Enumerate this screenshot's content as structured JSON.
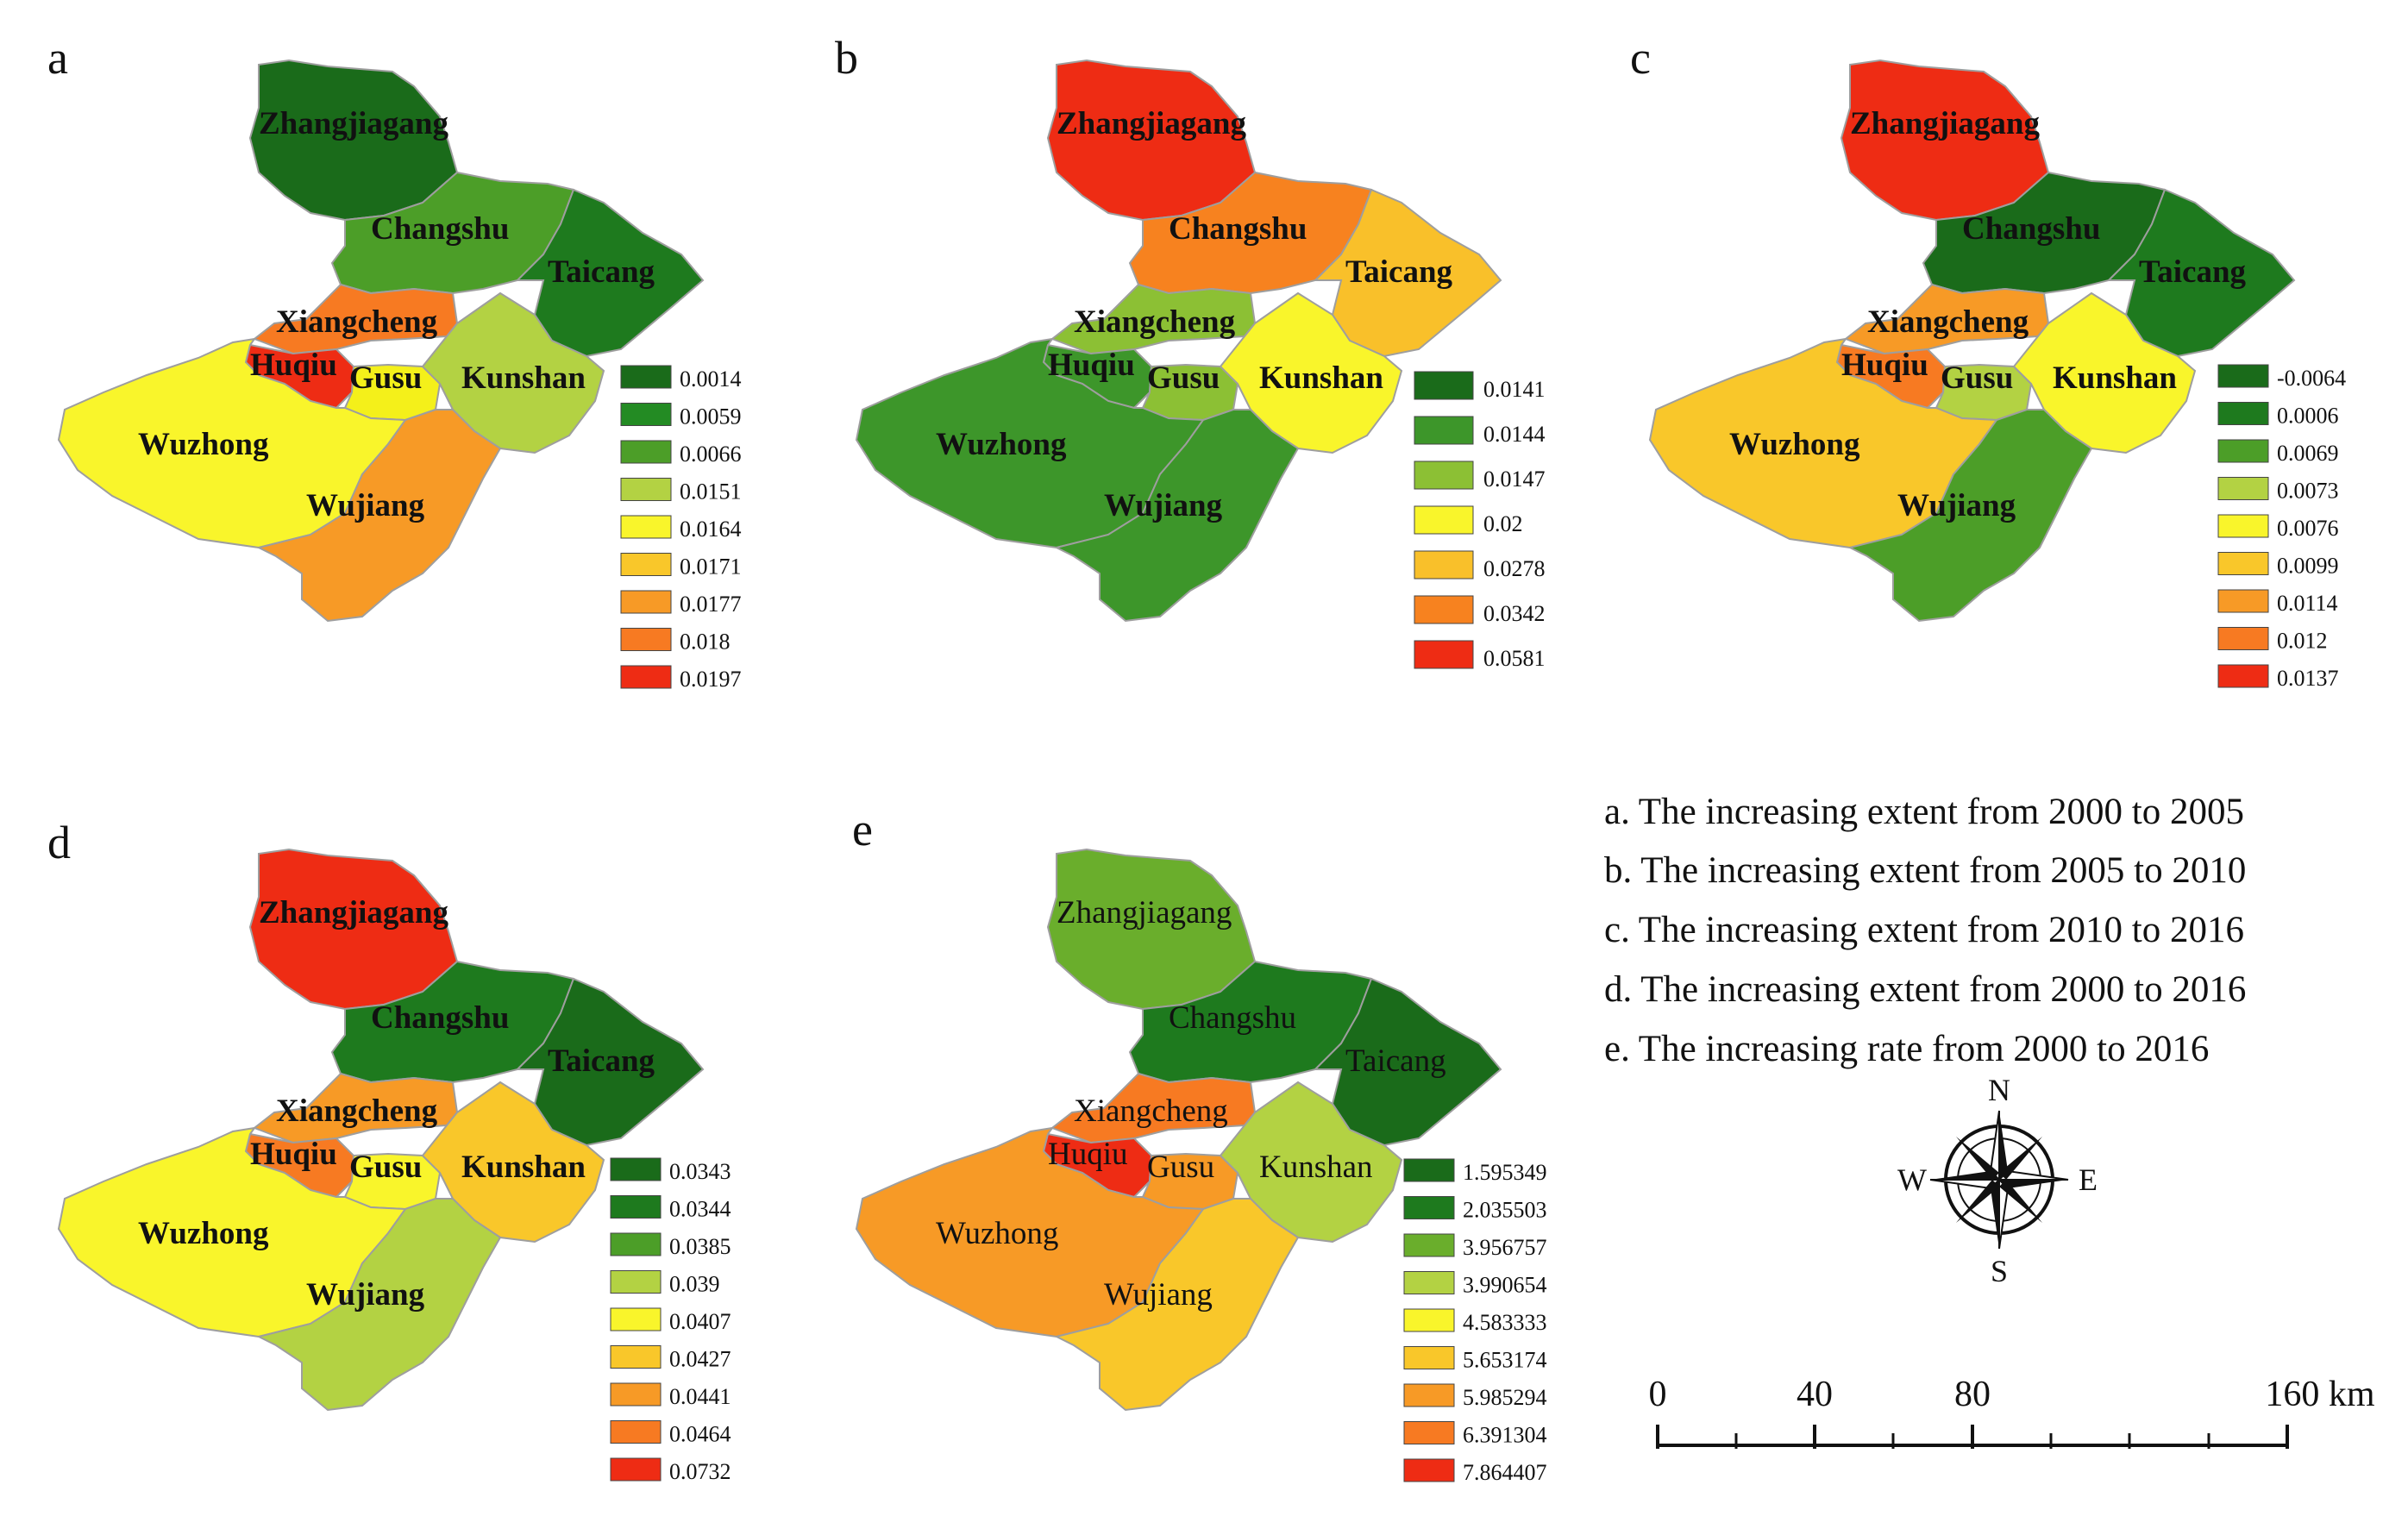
{
  "panels": [
    {
      "label": "a",
      "district_colors": {
        "Zhangjiagang": "#1a6b1a",
        "Changshu": "#4c9e28",
        "Taicang": "#1e7a1e",
        "Xiangcheng": "#f77a22",
        "Huqiu": "#ee2c14",
        "Gusu": "#f4f01a",
        "Kunshan": "#b3d243",
        "Wuzhong": "#f9f52b",
        "Wujiang": "#f79a26"
      },
      "legend": [
        {
          "value": "0.0014",
          "color": "#1a6b1a"
        },
        {
          "value": "0.0059",
          "color": "#238b23"
        },
        {
          "value": "0.0066",
          "color": "#4c9e28"
        },
        {
          "value": "0.0151",
          "color": "#b3d243"
        },
        {
          "value": "0.0164",
          "color": "#f9f52b"
        },
        {
          "value": "0.0171",
          "color": "#f9c72a"
        },
        {
          "value": "0.0177",
          "color": "#f79a26"
        },
        {
          "value": "0.018",
          "color": "#f77a22"
        },
        {
          "value": "0.0197",
          "color": "#ee2c14"
        }
      ]
    },
    {
      "label": "b",
      "district_colors": {
        "Zhangjiagang": "#ee2c14",
        "Changshu": "#f7821f",
        "Taicang": "#f9c02a",
        "Xiangcheng": "#8cc034",
        "Huqiu": "#3d962a",
        "Gusu": "#8cc034",
        "Kunshan": "#f9f52b",
        "Wuzhong": "#3d962a",
        "Wujiang": "#3d962a"
      },
      "legend": [
        {
          "value": "0.0141",
          "color": "#1a6b1a"
        },
        {
          "value": "0.0144",
          "color": "#3d962a"
        },
        {
          "value": "0.0147",
          "color": "#8cc034"
        },
        {
          "value": "0.02",
          "color": "#f9f52b"
        },
        {
          "value": "0.0278",
          "color": "#f9c02a"
        },
        {
          "value": "0.0342",
          "color": "#f7821f"
        },
        {
          "value": "0.0581",
          "color": "#ee2c14"
        }
      ]
    },
    {
      "label": "c",
      "district_colors": {
        "Zhangjiagang": "#ee2c14",
        "Changshu": "#1a6b1a",
        "Taicang": "#1e7a1e",
        "Xiangcheng": "#f79a26",
        "Huqiu": "#f77a22",
        "Gusu": "#b3d243",
        "Kunshan": "#f9f52b",
        "Wuzhong": "#f9c72a",
        "Wujiang": "#4c9e28"
      },
      "legend": [
        {
          "value": "-0.0064",
          "color": "#1a6b1a"
        },
        {
          "value": "0.0006",
          "color": "#1e7a1e"
        },
        {
          "value": "0.0069",
          "color": "#4c9e28"
        },
        {
          "value": "0.0073",
          "color": "#b3d243"
        },
        {
          "value": "0.0076",
          "color": "#f9f52b"
        },
        {
          "value": "0.0099",
          "color": "#f9c72a"
        },
        {
          "value": "0.0114",
          "color": "#f79a26"
        },
        {
          "value": "0.012",
          "color": "#f77a22"
        },
        {
          "value": "0.0137",
          "color": "#ee2c14"
        }
      ]
    },
    {
      "label": "d",
      "district_colors": {
        "Zhangjiagang": "#ee2c14",
        "Changshu": "#1e7a1e",
        "Taicang": "#1a6b1a",
        "Xiangcheng": "#f79a26",
        "Huqiu": "#f77a22",
        "Gusu": "#f9f52b",
        "Kunshan": "#f9c72a",
        "Wuzhong": "#f9f52b",
        "Wujiang": "#b3d243"
      },
      "legend": [
        {
          "value": "0.0343",
          "color": "#1a6b1a"
        },
        {
          "value": "0.0344",
          "color": "#1e7a1e"
        },
        {
          "value": "0.0385",
          "color": "#4c9e28"
        },
        {
          "value": "0.039",
          "color": "#b3d243"
        },
        {
          "value": "0.0407",
          "color": "#f9f52b"
        },
        {
          "value": "0.0427",
          "color": "#f9c72a"
        },
        {
          "value": "0.0441",
          "color": "#f79a26"
        },
        {
          "value": "0.0464",
          "color": "#f77a22"
        },
        {
          "value": "0.0732",
          "color": "#ee2c14"
        }
      ]
    },
    {
      "label": "e",
      "district_colors": {
        "Zhangjiagang": "#6aae2c",
        "Changshu": "#1e7a1e",
        "Taicang": "#1a6b1a",
        "Xiangcheng": "#f77a22",
        "Huqiu": "#ee2c14",
        "Gusu": "#f79a26",
        "Kunshan": "#b3d243",
        "Wuzhong": "#f79a26",
        "Wujiang": "#f9c72a"
      },
      "legend": [
        {
          "value": "1.595349",
          "color": "#1a6b1a"
        },
        {
          "value": "2.035503",
          "color": "#1e7a1e"
        },
        {
          "value": "3.956757",
          "color": "#6aae2c"
        },
        {
          "value": "3.990654",
          "color": "#b3d243"
        },
        {
          "value": "4.583333",
          "color": "#f9f52b"
        },
        {
          "value": "5.653174",
          "color": "#f9c72a"
        },
        {
          "value": "5.985294",
          "color": "#f79a26"
        },
        {
          "value": "6.391304",
          "color": "#f77a22"
        },
        {
          "value": "7.864407",
          "color": "#ee2c14"
        }
      ]
    }
  ],
  "district_names": [
    "Zhangjiagang",
    "Changshu",
    "Taicang",
    "Xiangcheng",
    "Huqiu",
    "Gusu",
    "Kunshan",
    "Wuzhong",
    "Wujiang"
  ],
  "captions": [
    "a. The increasing extent from 2000 to 2005",
    "b. The  increasing extent from 2005 to 2010",
    "c. The  increasing extent from 2010 to 2016",
    "d. The  increasing extent from 2000 to 2016",
    "e. The  increasing rate from 2000 to 2016"
  ],
  "compass": {
    "n": "N",
    "s": "S",
    "e": "E",
    "w": "W"
  },
  "scale_bar": {
    "ticks": [
      "0",
      "40",
      "80",
      "160 km"
    ]
  },
  "border_color": "#9e9e9e"
}
